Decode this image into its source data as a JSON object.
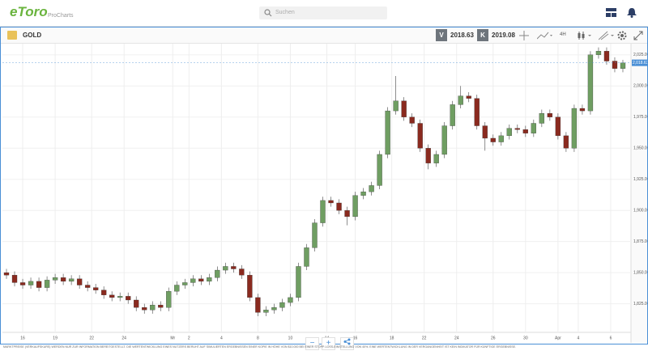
{
  "header": {
    "logo": "eToro",
    "product": "ProCharts",
    "search_placeholder": "Suchen"
  },
  "toolbar": {
    "instrument": "GOLD",
    "sell_tag": "V",
    "sell_price": "2018.63",
    "buy_tag": "K",
    "buy_price": "2019.08",
    "timeframe": "4H"
  },
  "footer": {
    "disclaimer": "MARKTPREISE (VERKAUFSKURS) WERDEN NUR ZUR INFORMATION BEREITGESTELLT. DIE WERTENTWICKLUNG EINES NUTZERS BERUHT AUF SIMULIERTEN ERGEBNISSEN EINER KOPIE IN HÖHE VON $10.000 BEI EINER STOPP-LOSS-EINSTELLUNG VON 40%. EINE WERTENTWICKLUNG IN DER VERGANGENHEIT IST KEIN INDIKATOR FÜR KÜNFTIGE ERGEBNISSE."
  },
  "chart_data": {
    "type": "candlestick",
    "up_color": "#6f9e62",
    "down_color": "#8a2a1f",
    "grid": true,
    "xlim": [
      0,
      155
    ],
    "ylim": [
      1802,
      2034
    ],
    "xticks": [
      {
        "value": 5,
        "label": "16"
      },
      {
        "value": 13,
        "label": "19"
      },
      {
        "value": 22,
        "label": "22"
      },
      {
        "value": 30,
        "label": "24"
      },
      {
        "value": 42,
        "label": "Mr"
      },
      {
        "value": 46,
        "label": "2"
      },
      {
        "value": 54,
        "label": "4"
      },
      {
        "value": 63,
        "label": "8"
      },
      {
        "value": 71,
        "label": "10"
      },
      {
        "value": 80,
        "label": "14"
      },
      {
        "value": 87,
        "label": "16"
      },
      {
        "value": 96,
        "label": "18"
      },
      {
        "value": 104,
        "label": "22"
      },
      {
        "value": 112,
        "label": "24"
      },
      {
        "value": 121,
        "label": "26"
      },
      {
        "value": 129,
        "label": "30"
      },
      {
        "value": 137,
        "label": "Apr"
      },
      {
        "value": 142,
        "label": "4"
      },
      {
        "value": 150,
        "label": "6"
      }
    ],
    "yticks": [
      {
        "value": 1825,
        "label": "1,825.00"
      },
      {
        "value": 1850,
        "label": "1,850.00"
      },
      {
        "value": 1875,
        "label": "1,875.00"
      },
      {
        "value": 1900,
        "label": "1,900.00"
      },
      {
        "value": 1925,
        "label": "1,925.00"
      },
      {
        "value": 1950,
        "label": "1,950.00"
      },
      {
        "value": 1975,
        "label": "1,975.00"
      },
      {
        "value": 2000,
        "label": "2,000.00"
      },
      {
        "value": 2025,
        "label": "2,025.00"
      }
    ],
    "last_label": "2,018.63",
    "x": [
      1,
      3,
      5,
      7,
      9,
      11,
      13,
      15,
      17,
      19,
      21,
      23,
      25,
      27,
      29,
      31,
      33,
      35,
      37,
      39,
      41,
      43,
      45,
      47,
      49,
      51,
      53,
      55,
      57,
      59,
      61,
      63,
      65,
      67,
      69,
      71,
      73,
      75,
      77,
      79,
      81,
      83,
      85,
      87,
      89,
      91,
      93,
      95,
      97,
      99,
      101,
      103,
      105,
      107,
      109,
      111,
      113,
      115,
      117,
      119,
      121,
      123,
      125,
      127,
      129,
      131,
      133,
      135,
      137,
      139,
      141,
      143,
      145,
      147,
      149,
      151,
      153
    ],
    "open": [
      1850,
      1848,
      1842,
      1840,
      1843,
      1838,
      1844,
      1846,
      1843,
      1845,
      1840,
      1838,
      1836,
      1832,
      1830,
      1831,
      1828,
      1822,
      1820,
      1824,
      1822,
      1835,
      1840,
      1842,
      1845,
      1843,
      1846,
      1852,
      1855,
      1853,
      1848,
      1830,
      1818,
      1820,
      1822,
      1826,
      1830,
      1855,
      1870,
      1890,
      1908,
      1906,
      1900,
      1895,
      1912,
      1915,
      1920,
      1945,
      1980,
      1988,
      1975,
      1970,
      1950,
      1938,
      1945,
      1968,
      1985,
      1992,
      1990,
      1968,
      1958,
      1955,
      1960,
      1966,
      1965,
      1962,
      1970,
      1978,
      1975,
      1960,
      1950,
      1982,
      1980,
      2025,
      2028,
      2020,
      2014
    ],
    "high": [
      1853,
      1851,
      1845,
      1846,
      1846,
      1847,
      1849,
      1849,
      1848,
      1848,
      1843,
      1841,
      1839,
      1835,
      1834,
      1834,
      1831,
      1825,
      1827,
      1827,
      1838,
      1843,
      1845,
      1848,
      1848,
      1849,
      1855,
      1858,
      1858,
      1856,
      1851,
      1833,
      1823,
      1825,
      1829,
      1833,
      1858,
      1873,
      1893,
      1911,
      1911,
      1909,
      1903,
      1915,
      1918,
      1923,
      1948,
      1983,
      2008,
      1991,
      1978,
      1973,
      1953,
      1948,
      1971,
      1988,
      2000,
      1995,
      1993,
      1971,
      1961,
      1963,
      1969,
      1969,
      1968,
      1973,
      1981,
      1981,
      1978,
      1963,
      1985,
      1985,
      2028,
      2031,
      2031,
      2023,
      2021
    ],
    "low": [
      1845,
      1839,
      1837,
      1837,
      1835,
      1835,
      1841,
      1840,
      1840,
      1837,
      1835,
      1833,
      1829,
      1827,
      1827,
      1825,
      1819,
      1817,
      1817,
      1819,
      1819,
      1832,
      1837,
      1839,
      1840,
      1840,
      1843,
      1849,
      1850,
      1845,
      1827,
      1815,
      1815,
      1817,
      1819,
      1823,
      1827,
      1852,
      1867,
      1887,
      1903,
      1897,
      1888,
      1892,
      1909,
      1912,
      1917,
      1942,
      1977,
      1972,
      1967,
      1947,
      1933,
      1935,
      1942,
      1965,
      1982,
      1987,
      1965,
      1948,
      1952,
      1952,
      1957,
      1962,
      1959,
      1959,
      1967,
      1972,
      1957,
      1947,
      1947,
      1977,
      1977,
      2022,
      2017,
      2011,
      2011
    ],
    "close": [
      1848,
      1842,
      1840,
      1843,
      1838,
      1844,
      1846,
      1843,
      1845,
      1840,
      1838,
      1836,
      1832,
      1830,
      1831,
      1828,
      1822,
      1820,
      1824,
      1822,
      1835,
      1840,
      1842,
      1845,
      1843,
      1846,
      1852,
      1855,
      1853,
      1848,
      1830,
      1818,
      1820,
      1822,
      1826,
      1830,
      1855,
      1870,
      1890,
      1908,
      1906,
      1900,
      1895,
      1912,
      1915,
      1920,
      1945,
      1980,
      1988,
      1975,
      1970,
      1950,
      1938,
      1945,
      1968,
      1985,
      1992,
      1990,
      1968,
      1958,
      1955,
      1960,
      1966,
      1965,
      1962,
      1970,
      1978,
      1975,
      1960,
      1950,
      1982,
      1980,
      2025,
      2028,
      2020,
      2014,
      2018.63
    ]
  }
}
